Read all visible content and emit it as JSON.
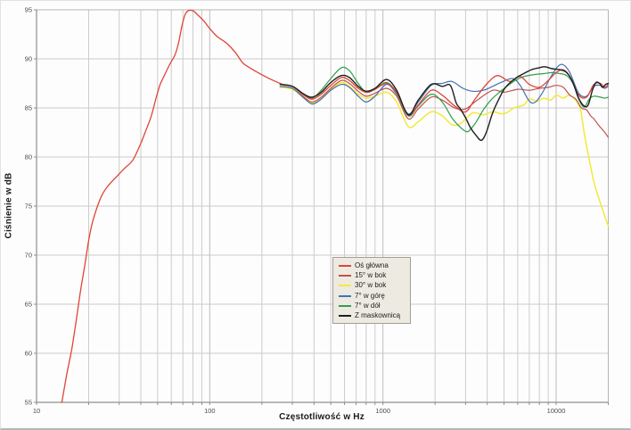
{
  "chart_data": {
    "type": "line",
    "title": "",
    "xlabel": "Częstotliwość w Hz",
    "ylabel": "Ciśnienie w dB",
    "x_scale": "log",
    "x_range": [
      10,
      20000
    ],
    "ylim": [
      55,
      95
    ],
    "y_tick_step": 5,
    "x_ticks": [
      10,
      100,
      1000,
      10000
    ],
    "y_ticks": [
      55,
      60,
      65,
      70,
      75,
      80,
      85,
      90,
      95
    ],
    "grid": "on",
    "legend_position": "center",
    "grid_colors": {
      "minor": "#cccccc",
      "major": "#bdbdbd",
      "axis": "#8f8f8f",
      "frame": "#b5b5b5"
    },
    "legend_bg": "#edeae1",
    "series": [
      {
        "name": "Oś główna",
        "color": "#df4537",
        "width": 1.3,
        "points": [
          [
            14,
            55
          ],
          [
            15,
            58
          ],
          [
            16,
            60.5
          ],
          [
            17,
            63.5
          ],
          [
            18,
            66.5
          ],
          [
            19,
            69
          ],
          [
            20,
            71.5
          ],
          [
            21,
            73.3
          ],
          [
            22.5,
            75
          ],
          [
            24,
            76.2
          ],
          [
            26,
            77.1
          ],
          [
            29,
            78
          ],
          [
            32,
            78.8
          ],
          [
            36,
            79.7
          ],
          [
            40,
            81.4
          ],
          [
            43,
            82.8
          ],
          [
            46,
            84.2
          ],
          [
            49,
            86
          ],
          [
            51.5,
            87.3
          ],
          [
            54,
            88.1
          ],
          [
            59,
            89.5
          ],
          [
            63,
            90.4
          ],
          [
            66,
            91.6
          ],
          [
            69,
            93.3
          ],
          [
            72,
            94.5
          ],
          [
            75,
            94.9
          ],
          [
            80,
            94.9
          ],
          [
            85,
            94.5
          ],
          [
            92,
            93.9
          ],
          [
            100,
            93.1
          ],
          [
            110,
            92.3
          ],
          [
            125,
            91.6
          ],
          [
            140,
            90.7
          ],
          [
            155,
            89.6
          ],
          [
            170,
            89.1
          ],
          [
            190,
            88.6
          ],
          [
            215,
            88.1
          ],
          [
            240,
            87.7
          ],
          [
            265,
            87.4
          ],
          [
            300,
            87.2
          ],
          [
            350,
            86.3
          ],
          [
            390,
            85.9
          ],
          [
            440,
            86.4
          ],
          [
            500,
            87.3
          ],
          [
            575,
            88.1
          ],
          [
            640,
            87.8
          ],
          [
            720,
            87
          ],
          [
            800,
            86.6
          ],
          [
            900,
            86.9
          ],
          [
            1050,
            87.5
          ],
          [
            1200,
            86.6
          ],
          [
            1400,
            84.3
          ],
          [
            1600,
            85.3
          ],
          [
            1900,
            86.8
          ],
          [
            2200,
            86.3
          ],
          [
            2600,
            85.2
          ],
          [
            3000,
            84.6
          ],
          [
            3400,
            85.9
          ],
          [
            4000,
            87.5
          ],
          [
            4600,
            88.3
          ],
          [
            5400,
            87.7
          ],
          [
            6200,
            88.2
          ],
          [
            7000,
            87.4
          ],
          [
            8000,
            87.1
          ],
          [
            9000,
            87.8
          ],
          [
            10000,
            88.6
          ],
          [
            11000,
            88.9
          ],
          [
            12000,
            88.2
          ],
          [
            13500,
            86.3
          ],
          [
            15000,
            86.1
          ],
          [
            16500,
            87.4
          ],
          [
            18000,
            87.5
          ],
          [
            19000,
            87.1
          ],
          [
            20000,
            87.4
          ]
        ]
      },
      {
        "name": "15° w bok",
        "color": "#c1504c",
        "width": 1.2,
        "points": [
          [
            255,
            87.2
          ],
          [
            300,
            87
          ],
          [
            350,
            86.1
          ],
          [
            390,
            85.6
          ],
          [
            440,
            86.1
          ],
          [
            500,
            87
          ],
          [
            575,
            87.8
          ],
          [
            640,
            87.5
          ],
          [
            720,
            86.7
          ],
          [
            800,
            86.2
          ],
          [
            900,
            86.5
          ],
          [
            1050,
            87
          ],
          [
            1200,
            86.2
          ],
          [
            1400,
            83.9
          ],
          [
            1600,
            84.9
          ],
          [
            1900,
            86.1
          ],
          [
            2200,
            85.8
          ],
          [
            2600,
            85
          ],
          [
            3000,
            84.9
          ],
          [
            3500,
            85.8
          ],
          [
            4300,
            86.8
          ],
          [
            5000,
            86.6
          ],
          [
            6000,
            86.9
          ],
          [
            7000,
            86.8
          ],
          [
            8000,
            87
          ],
          [
            9000,
            87.1
          ],
          [
            10000,
            87.3
          ],
          [
            11000,
            87.1
          ],
          [
            12000,
            86.3
          ],
          [
            13000,
            85.9
          ],
          [
            14000,
            85
          ],
          [
            15000,
            84.8
          ],
          [
            15800,
            84.2
          ],
          [
            16500,
            83.9
          ],
          [
            17500,
            83.3
          ],
          [
            18500,
            82.8
          ],
          [
            19300,
            82.4
          ],
          [
            20000,
            82
          ]
        ]
      },
      {
        "name": "30° w bok",
        "color": "#f2e93c",
        "width": 1.5,
        "points": [
          [
            255,
            87.1
          ],
          [
            300,
            86.9
          ],
          [
            350,
            86
          ],
          [
            390,
            85.5
          ],
          [
            440,
            86
          ],
          [
            500,
            86.9
          ],
          [
            575,
            87.6
          ],
          [
            640,
            87.2
          ],
          [
            720,
            86.4
          ],
          [
            800,
            86
          ],
          [
            900,
            86.2
          ],
          [
            1050,
            86.6
          ],
          [
            1200,
            85.6
          ],
          [
            1400,
            83.1
          ],
          [
            1600,
            83.6
          ],
          [
            1900,
            84.6
          ],
          [
            2200,
            84.2
          ],
          [
            2500,
            83.3
          ],
          [
            2800,
            83.4
          ],
          [
            3300,
            84.5
          ],
          [
            3800,
            84.3
          ],
          [
            4300,
            84.6
          ],
          [
            5000,
            84.4
          ],
          [
            5700,
            85
          ],
          [
            6500,
            85.3
          ],
          [
            7000,
            85.9
          ],
          [
            7800,
            85.7
          ],
          [
            8500,
            86
          ],
          [
            9300,
            85.8
          ],
          [
            10000,
            86.3
          ],
          [
            11000,
            86
          ],
          [
            11800,
            86.3
          ],
          [
            12800,
            85.9
          ],
          [
            13800,
            84.9
          ],
          [
            14500,
            82.5
          ],
          [
            15500,
            79.8
          ],
          [
            16500,
            77.5
          ],
          [
            17500,
            76
          ],
          [
            18500,
            74.7
          ],
          [
            19300,
            73.7
          ],
          [
            20000,
            73
          ]
        ]
      },
      {
        "name": "7° w górę",
        "color": "#4273b4",
        "width": 1.2,
        "points": [
          [
            255,
            87.2
          ],
          [
            300,
            87
          ],
          [
            350,
            86
          ],
          [
            390,
            85.4
          ],
          [
            440,
            85.9
          ],
          [
            500,
            86.8
          ],
          [
            575,
            87.4
          ],
          [
            640,
            87.1
          ],
          [
            720,
            86.2
          ],
          [
            800,
            85.6
          ],
          [
            900,
            86.2
          ],
          [
            1050,
            87.4
          ],
          [
            1200,
            86.4
          ],
          [
            1400,
            84.4
          ],
          [
            1600,
            85.6
          ],
          [
            1900,
            87.3
          ],
          [
            2200,
            87.5
          ],
          [
            2500,
            87.7
          ],
          [
            2900,
            87
          ],
          [
            3300,
            86.7
          ],
          [
            3800,
            86.8
          ],
          [
            4300,
            87.2
          ],
          [
            4800,
            87.6
          ],
          [
            5600,
            88
          ],
          [
            6200,
            87.3
          ],
          [
            7000,
            85.7
          ],
          [
            7600,
            85.6
          ],
          [
            8300,
            86.5
          ],
          [
            9200,
            88
          ],
          [
            10200,
            89.2
          ],
          [
            11000,
            89.4
          ],
          [
            12000,
            88.6
          ],
          [
            13500,
            86.5
          ],
          [
            15000,
            86.2
          ],
          [
            16500,
            87.2
          ],
          [
            18000,
            87.3
          ],
          [
            19000,
            87
          ],
          [
            20000,
            87.2
          ]
        ]
      },
      {
        "name": "7° w dół",
        "color": "#2f9e4c",
        "width": 1.2,
        "points": [
          [
            255,
            87.4
          ],
          [
            300,
            87.2
          ],
          [
            350,
            86.4
          ],
          [
            390,
            86
          ],
          [
            440,
            86.8
          ],
          [
            500,
            88
          ],
          [
            575,
            89.1
          ],
          [
            640,
            88.8
          ],
          [
            720,
            87.5
          ],
          [
            800,
            86.6
          ],
          [
            900,
            86.9
          ],
          [
            1050,
            87.6
          ],
          [
            1200,
            86.5
          ],
          [
            1400,
            84.2
          ],
          [
            1600,
            85.2
          ],
          [
            1900,
            86.4
          ],
          [
            2200,
            85.6
          ],
          [
            2500,
            84
          ],
          [
            2700,
            83.3
          ],
          [
            2900,
            82.8
          ],
          [
            3100,
            82.6
          ],
          [
            3400,
            83.4
          ],
          [
            3800,
            84.8
          ],
          [
            4200,
            85.8
          ],
          [
            4700,
            86.6
          ],
          [
            5200,
            87.2
          ],
          [
            5800,
            87.8
          ],
          [
            6500,
            88.2
          ],
          [
            7500,
            88.4
          ],
          [
            8500,
            88.5
          ],
          [
            9500,
            88.6
          ],
          [
            10500,
            88.5
          ],
          [
            11500,
            88.3
          ],
          [
            12500,
            87.5
          ],
          [
            13500,
            85.9
          ],
          [
            14500,
            85.1
          ],
          [
            15500,
            85.9
          ],
          [
            16500,
            86.2
          ],
          [
            18000,
            86.1
          ],
          [
            19000,
            86
          ],
          [
            20000,
            86.1
          ]
        ]
      },
      {
        "name": "Z maskownicą",
        "color": "#1f1f1f",
        "width": 1.4,
        "points": [
          [
            255,
            87.4
          ],
          [
            300,
            87.2
          ],
          [
            350,
            86.4
          ],
          [
            390,
            86.1
          ],
          [
            440,
            86.6
          ],
          [
            500,
            87.6
          ],
          [
            575,
            88.3
          ],
          [
            640,
            88.1
          ],
          [
            720,
            87.2
          ],
          [
            800,
            86.7
          ],
          [
            900,
            87
          ],
          [
            1050,
            87.9
          ],
          [
            1200,
            86.8
          ],
          [
            1400,
            84.3
          ],
          [
            1600,
            85.8
          ],
          [
            1900,
            87.4
          ],
          [
            2200,
            87.2
          ],
          [
            2450,
            87.3
          ],
          [
            2650,
            85.5
          ],
          [
            2800,
            84.9
          ],
          [
            3000,
            84
          ],
          [
            3200,
            83
          ],
          [
            3450,
            82.2
          ],
          [
            3700,
            81.7
          ],
          [
            3950,
            82.5
          ],
          [
            4300,
            84.5
          ],
          [
            4700,
            86
          ],
          [
            5100,
            87.1
          ],
          [
            5800,
            88
          ],
          [
            6500,
            88.5
          ],
          [
            7200,
            88.9
          ],
          [
            8000,
            89.1
          ],
          [
            8600,
            89.2
          ],
          [
            9500,
            89
          ],
          [
            10500,
            88.9
          ],
          [
            11500,
            88.6
          ],
          [
            12500,
            87.6
          ],
          [
            13500,
            86
          ],
          [
            14500,
            85.2
          ],
          [
            15300,
            85.3
          ],
          [
            16200,
            86.8
          ],
          [
            17000,
            87.6
          ],
          [
            17800,
            87.5
          ],
          [
            18500,
            87.1
          ],
          [
            19300,
            87.4
          ],
          [
            20000,
            87.5
          ]
        ]
      }
    ],
    "draw_order": [
      2,
      1,
      3,
      4,
      0,
      5
    ]
  }
}
